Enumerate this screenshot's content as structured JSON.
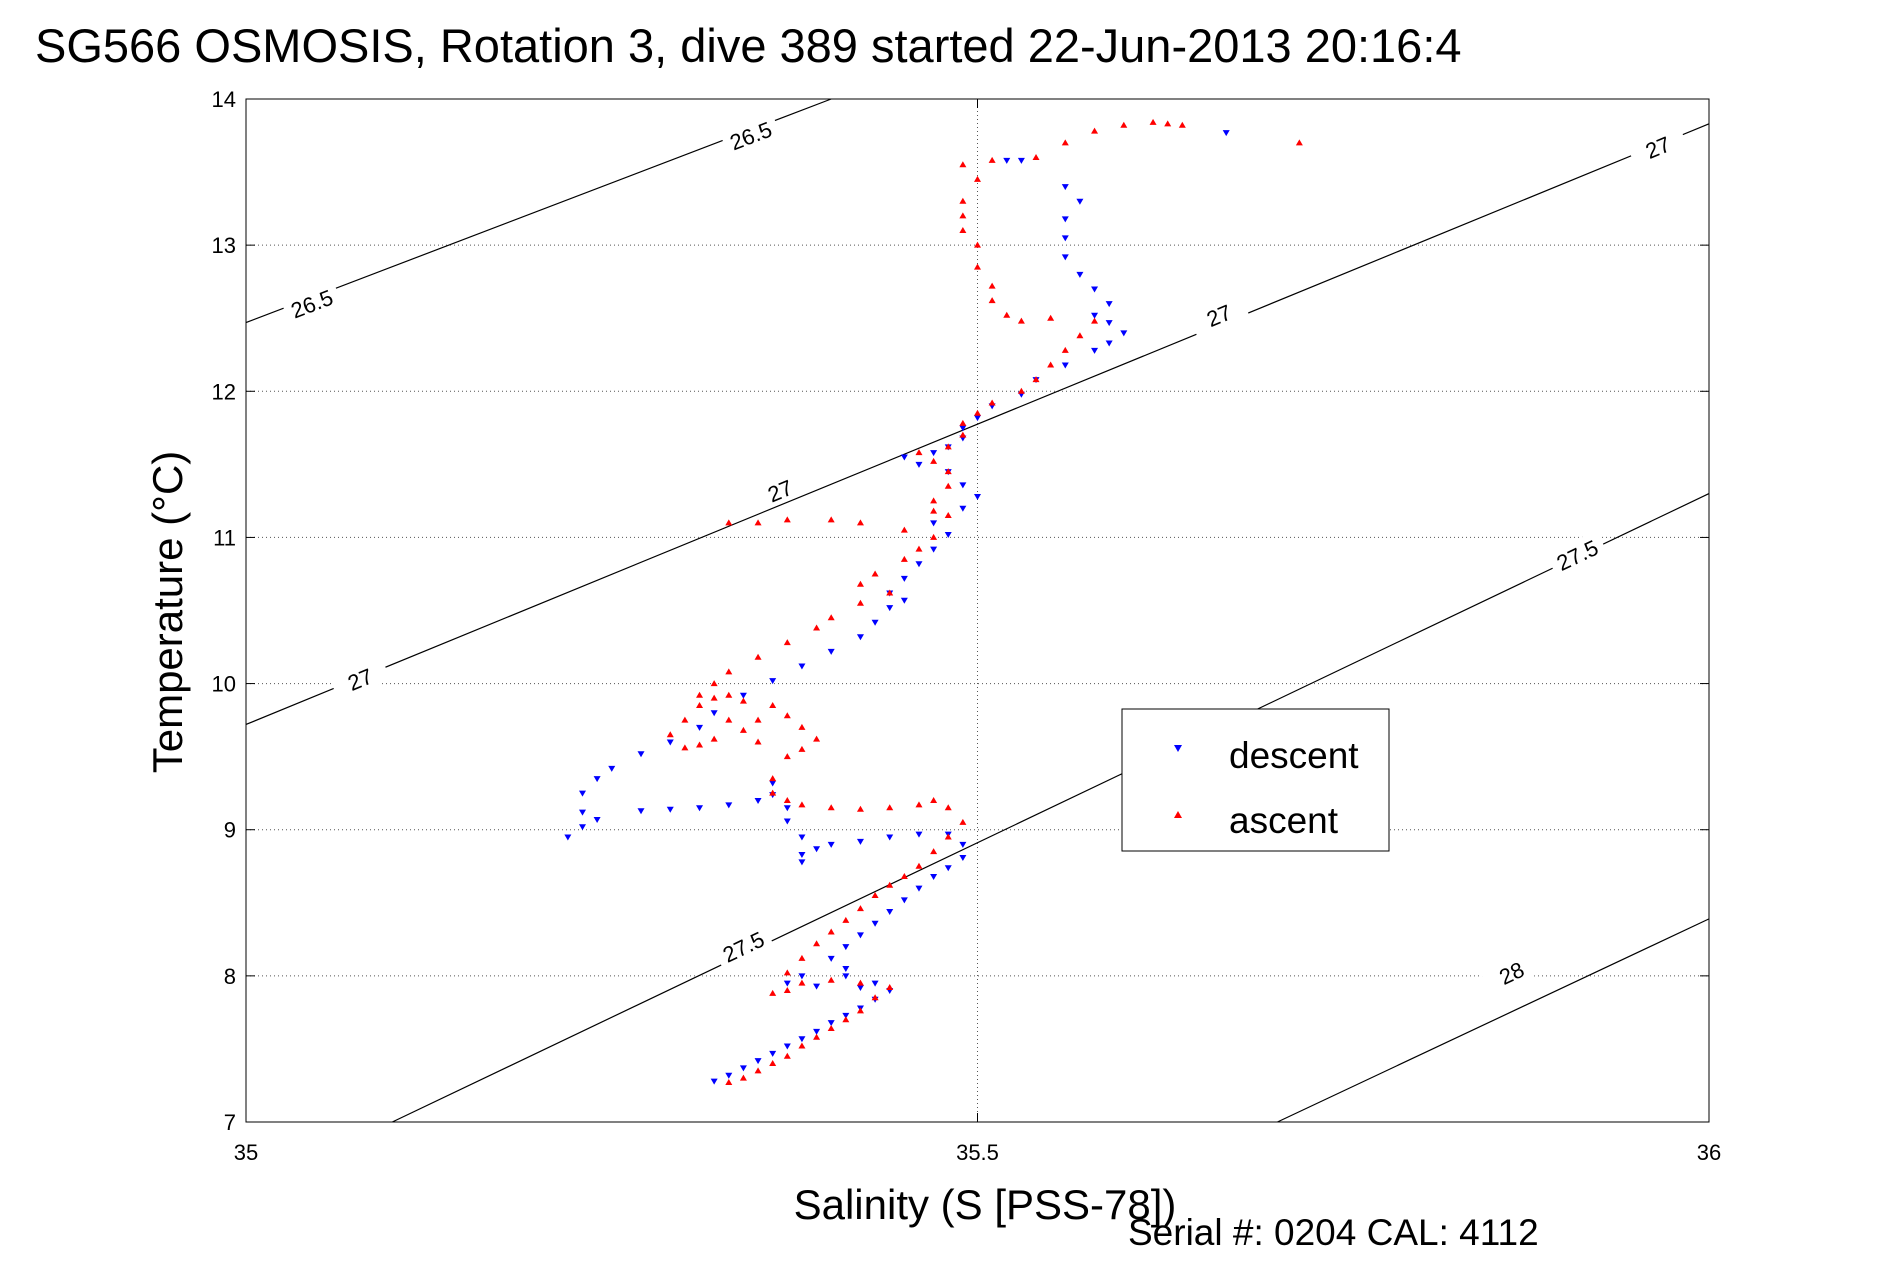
{
  "chart_data": {
    "type": "scatter",
    "title": "SG566 OSMOSIS, Rotation 3, dive 389 started 22-Jun-2013 20:16:4",
    "xlabel": "Salinity (S [PSS-78])",
    "ylabel": "Temperature (°C)",
    "xlim": [
      35,
      36
    ],
    "ylim": [
      7,
      14
    ],
    "x_ticks": [
      "35",
      "35.5",
      "36"
    ],
    "y_ticks": [
      "7",
      "8",
      "9",
      "10",
      "11",
      "12",
      "13",
      "14"
    ],
    "grid": "dotted",
    "legend": {
      "position": "right-center",
      "entries": [
        "descent",
        "ascent"
      ]
    },
    "footer": "Serial #: 0204  CAL: 4112",
    "colors": {
      "descent": "#0000ff",
      "ascent": "#ff0000",
      "isopycnal": "#000000"
    },
    "isopycnals": [
      {
        "label": "26.5",
        "points": [
          [
            35,
            12.47
          ],
          [
            35.4,
            14
          ]
        ],
        "labels_at": [
          [
            35.045,
            12.6
          ],
          [
            35.345,
            13.75
          ]
        ]
      },
      {
        "label": "27",
        "points": [
          [
            35,
            9.72
          ],
          [
            36,
            13.83
          ]
        ],
        "labels_at": [
          [
            35.078,
            10.03
          ],
          [
            35.365,
            11.32
          ],
          [
            35.665,
            12.52
          ],
          [
            35.965,
            13.67
          ]
        ]
      },
      {
        "label": "27.5",
        "points": [
          [
            35.1,
            7
          ],
          [
            36,
            11.3
          ]
        ],
        "labels_at": [
          [
            35.34,
            8.2
          ],
          [
            35.91,
            10.88
          ]
        ]
      },
      {
        "label": "28",
        "points": [
          [
            35.705,
            7
          ],
          [
            36,
            8.39
          ]
        ],
        "labels_at": [
          [
            35.865,
            8.02
          ]
        ]
      }
    ],
    "series": [
      {
        "name": "descent",
        "marker": "triangle-down",
        "points": [
          [
            35.32,
            7.28
          ],
          [
            35.33,
            7.32
          ],
          [
            35.34,
            7.37
          ],
          [
            35.35,
            7.42
          ],
          [
            35.36,
            7.47
          ],
          [
            35.37,
            7.52
          ],
          [
            35.38,
            7.57
          ],
          [
            35.39,
            7.62
          ],
          [
            35.4,
            7.68
          ],
          [
            35.41,
            7.73
          ],
          [
            35.42,
            7.78
          ],
          [
            35.43,
            7.84
          ],
          [
            35.44,
            7.9
          ],
          [
            35.43,
            7.95
          ],
          [
            35.41,
            8.0
          ],
          [
            35.38,
            8.0
          ],
          [
            35.37,
            7.95
          ],
          [
            35.39,
            7.93
          ],
          [
            35.42,
            7.92
          ],
          [
            35.41,
            8.05
          ],
          [
            35.4,
            8.12
          ],
          [
            35.41,
            8.2
          ],
          [
            35.42,
            8.28
          ],
          [
            35.43,
            8.36
          ],
          [
            35.44,
            8.44
          ],
          [
            35.45,
            8.52
          ],
          [
            35.46,
            8.6
          ],
          [
            35.47,
            8.68
          ],
          [
            35.48,
            8.74
          ],
          [
            35.49,
            8.81
          ],
          [
            35.49,
            8.9
          ],
          [
            35.48,
            8.97
          ],
          [
            35.46,
            8.97
          ],
          [
            35.44,
            8.95
          ],
          [
            35.42,
            8.92
          ],
          [
            35.4,
            8.9
          ],
          [
            35.39,
            8.87
          ],
          [
            35.38,
            8.83
          ],
          [
            35.38,
            8.78
          ],
          [
            35.38,
            8.95
          ],
          [
            35.37,
            9.06
          ],
          [
            35.37,
            9.15
          ],
          [
            35.36,
            9.24
          ],
          [
            35.36,
            9.32
          ],
          [
            35.35,
            9.2
          ],
          [
            35.33,
            9.17
          ],
          [
            35.31,
            9.15
          ],
          [
            35.29,
            9.14
          ],
          [
            35.27,
            9.13
          ],
          [
            35.24,
            9.07
          ],
          [
            35.23,
            9.02
          ],
          [
            35.22,
            8.95
          ],
          [
            35.23,
            9.12
          ],
          [
            35.23,
            9.25
          ],
          [
            35.24,
            9.35
          ],
          [
            35.25,
            9.42
          ],
          [
            35.27,
            9.52
          ],
          [
            35.29,
            9.6
          ],
          [
            35.31,
            9.7
          ],
          [
            35.32,
            9.8
          ],
          [
            35.34,
            9.92
          ],
          [
            35.36,
            10.02
          ],
          [
            35.38,
            10.12
          ],
          [
            35.4,
            10.22
          ],
          [
            35.42,
            10.32
          ],
          [
            35.43,
            10.42
          ],
          [
            35.44,
            10.52
          ],
          [
            35.45,
            10.57
          ],
          [
            35.44,
            10.62
          ],
          [
            35.45,
            10.72
          ],
          [
            35.46,
            10.82
          ],
          [
            35.47,
            10.92
          ],
          [
            35.48,
            11.02
          ],
          [
            35.47,
            11.1
          ],
          [
            35.49,
            11.2
          ],
          [
            35.5,
            11.28
          ],
          [
            35.49,
            11.36
          ],
          [
            35.48,
            11.45
          ],
          [
            35.46,
            11.5
          ],
          [
            35.45,
            11.55
          ],
          [
            35.47,
            11.58
          ],
          [
            35.48,
            11.62
          ],
          [
            35.49,
            11.68
          ],
          [
            35.49,
            11.75
          ],
          [
            35.5,
            11.82
          ],
          [
            35.51,
            11.9
          ],
          [
            35.53,
            11.98
          ],
          [
            35.54,
            12.08
          ],
          [
            35.56,
            12.18
          ],
          [
            35.58,
            12.28
          ],
          [
            35.59,
            12.33
          ],
          [
            35.6,
            12.4
          ],
          [
            35.59,
            12.47
          ],
          [
            35.58,
            12.52
          ],
          [
            35.59,
            12.6
          ],
          [
            35.58,
            12.7
          ],
          [
            35.57,
            12.8
          ],
          [
            35.56,
            12.92
          ],
          [
            35.56,
            13.05
          ],
          [
            35.56,
            13.18
          ],
          [
            35.57,
            13.3
          ],
          [
            35.56,
            13.4
          ],
          [
            35.53,
            13.58
          ],
          [
            35.52,
            13.58
          ],
          [
            35.67,
            13.77
          ]
        ]
      },
      {
        "name": "ascent",
        "marker": "triangle-up",
        "points": [
          [
            35.33,
            7.27
          ],
          [
            35.34,
            7.3
          ],
          [
            35.35,
            7.35
          ],
          [
            35.36,
            7.4
          ],
          [
            35.37,
            7.45
          ],
          [
            35.38,
            7.52
          ],
          [
            35.39,
            7.58
          ],
          [
            35.4,
            7.64
          ],
          [
            35.41,
            7.7
          ],
          [
            35.42,
            7.76
          ],
          [
            35.43,
            7.85
          ],
          [
            35.44,
            7.92
          ],
          [
            35.42,
            7.95
          ],
          [
            35.4,
            7.97
          ],
          [
            35.38,
            7.95
          ],
          [
            35.37,
            7.9
          ],
          [
            35.36,
            7.88
          ],
          [
            35.37,
            8.02
          ],
          [
            35.38,
            8.12
          ],
          [
            35.39,
            8.22
          ],
          [
            35.4,
            8.3
          ],
          [
            35.41,
            8.38
          ],
          [
            35.42,
            8.46
          ],
          [
            35.43,
            8.55
          ],
          [
            35.44,
            8.62
          ],
          [
            35.45,
            8.68
          ],
          [
            35.46,
            8.75
          ],
          [
            35.47,
            8.85
          ],
          [
            35.48,
            8.95
          ],
          [
            35.49,
            9.05
          ],
          [
            35.48,
            9.15
          ],
          [
            35.47,
            9.2
          ],
          [
            35.46,
            9.17
          ],
          [
            35.44,
            9.15
          ],
          [
            35.42,
            9.14
          ],
          [
            35.4,
            9.15
          ],
          [
            35.38,
            9.17
          ],
          [
            35.37,
            9.2
          ],
          [
            35.36,
            9.25
          ],
          [
            35.36,
            9.35
          ],
          [
            35.37,
            9.5
          ],
          [
            35.38,
            9.55
          ],
          [
            35.39,
            9.62
          ],
          [
            35.38,
            9.7
          ],
          [
            35.37,
            9.78
          ],
          [
            35.36,
            9.85
          ],
          [
            35.35,
            9.75
          ],
          [
            35.34,
            9.68
          ],
          [
            35.35,
            9.6
          ],
          [
            35.34,
            9.88
          ],
          [
            35.33,
            9.92
          ],
          [
            35.32,
            9.9
          ],
          [
            35.31,
            9.85
          ],
          [
            35.3,
            9.75
          ],
          [
            35.29,
            9.65
          ],
          [
            35.3,
            9.56
          ],
          [
            35.31,
            9.58
          ],
          [
            35.32,
            9.62
          ],
          [
            35.33,
            9.75
          ],
          [
            35.31,
            9.92
          ],
          [
            35.32,
            10.0
          ],
          [
            35.33,
            10.08
          ],
          [
            35.35,
            10.18
          ],
          [
            35.37,
            10.28
          ],
          [
            35.39,
            10.38
          ],
          [
            35.4,
            10.45
          ],
          [
            35.42,
            10.55
          ],
          [
            35.44,
            10.62
          ],
          [
            35.42,
            10.68
          ],
          [
            35.43,
            10.75
          ],
          [
            35.45,
            10.85
          ],
          [
            35.46,
            10.92
          ],
          [
            35.47,
            11.0
          ],
          [
            35.45,
            11.05
          ],
          [
            35.42,
            11.1
          ],
          [
            35.4,
            11.12
          ],
          [
            35.37,
            11.12
          ],
          [
            35.35,
            11.1
          ],
          [
            35.33,
            11.1
          ],
          [
            35.47,
            11.18
          ],
          [
            35.48,
            11.15
          ],
          [
            35.47,
            11.25
          ],
          [
            35.48,
            11.35
          ],
          [
            35.48,
            11.45
          ],
          [
            35.47,
            11.52
          ],
          [
            35.46,
            11.58
          ],
          [
            35.48,
            11.62
          ],
          [
            35.49,
            11.7
          ],
          [
            35.49,
            11.78
          ],
          [
            35.5,
            11.85
          ],
          [
            35.51,
            11.92
          ],
          [
            35.53,
            12.0
          ],
          [
            35.54,
            12.08
          ],
          [
            35.55,
            12.18
          ],
          [
            35.56,
            12.28
          ],
          [
            35.57,
            12.38
          ],
          [
            35.58,
            12.48
          ],
          [
            35.55,
            12.5
          ],
          [
            35.53,
            12.48
          ],
          [
            35.52,
            12.52
          ],
          [
            35.51,
            12.62
          ],
          [
            35.51,
            12.72
          ],
          [
            35.5,
            12.85
          ],
          [
            35.5,
            13.0
          ],
          [
            35.49,
            13.1
          ],
          [
            35.49,
            13.2
          ],
          [
            35.49,
            13.3
          ],
          [
            35.5,
            13.45
          ],
          [
            35.49,
            13.55
          ],
          [
            35.51,
            13.58
          ],
          [
            35.54,
            13.6
          ],
          [
            35.56,
            13.7
          ],
          [
            35.58,
            13.78
          ],
          [
            35.6,
            13.82
          ],
          [
            35.62,
            13.84
          ],
          [
            35.63,
            13.83
          ],
          [
            35.64,
            13.82
          ],
          [
            35.72,
            13.7
          ]
        ]
      }
    ]
  }
}
